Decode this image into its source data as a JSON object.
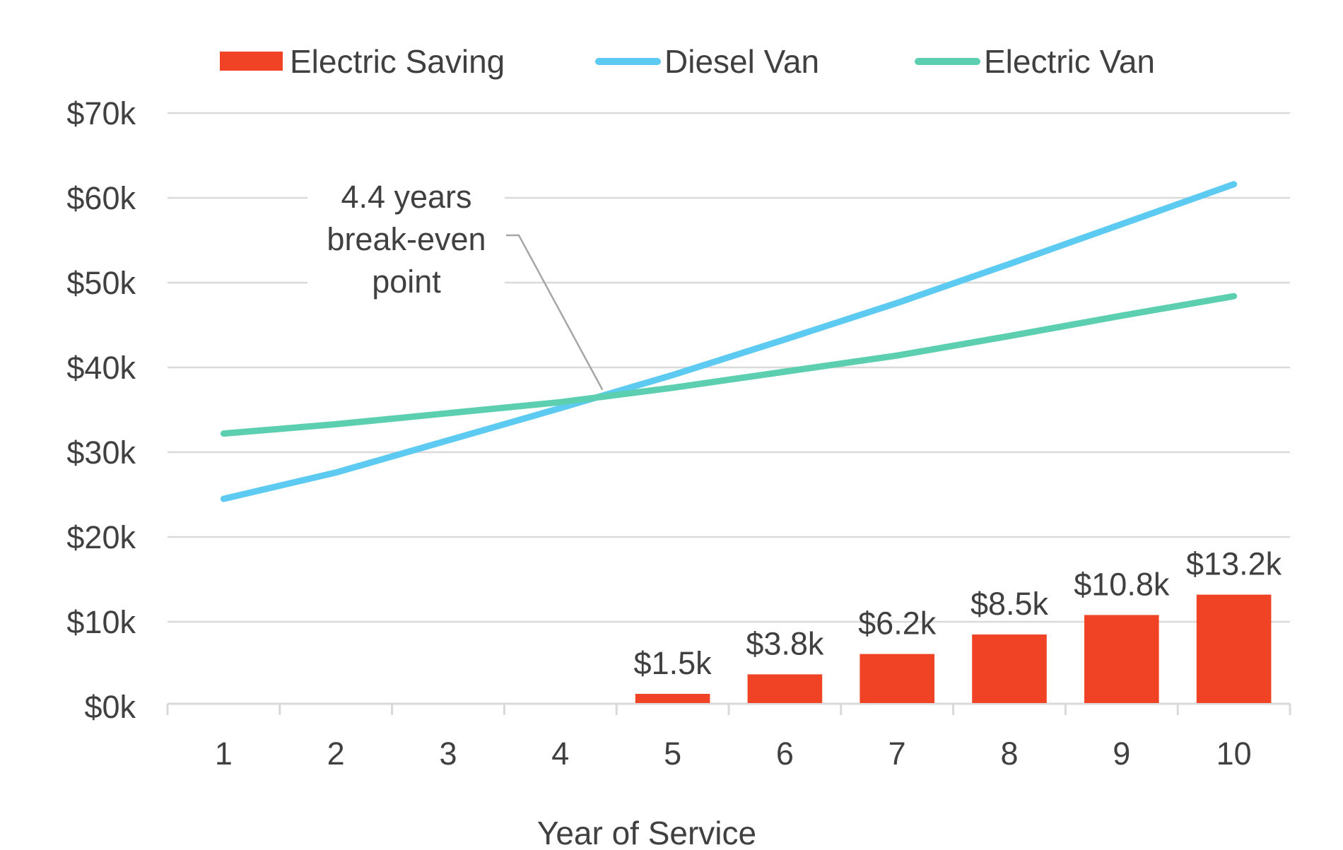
{
  "chart_data": {
    "type": "bar+line",
    "title": "",
    "xlabel": "Year of Service",
    "ylabel": "",
    "categories": [
      "1",
      "2",
      "3",
      "4",
      "5",
      "6",
      "7",
      "8",
      "9",
      "10"
    ],
    "ylim": [
      0,
      70
    ],
    "y_ticks": [
      0,
      10,
      20,
      30,
      40,
      50,
      60,
      70
    ],
    "y_tick_labels": [
      "$0k",
      "$10k",
      "$20k",
      "$30k",
      "$40k",
      "$50k",
      "$60k",
      "$70k"
    ],
    "y_unit": "thousand USD",
    "grid": true,
    "legend_position": "top",
    "series": [
      {
        "name": "Electric Saving",
        "type": "bar",
        "color": "#F04325",
        "values": [
          null,
          null,
          null,
          null,
          1.5,
          3.8,
          6.2,
          8.5,
          10.8,
          13.2
        ],
        "data_labels": [
          null,
          null,
          null,
          null,
          "$1.5k",
          "$3.8k",
          "$6.2k",
          "$8.5k",
          "$10.8k",
          "$13.2k"
        ]
      },
      {
        "name": "Diesel Van",
        "type": "line",
        "color": "#5DCAF2",
        "values": [
          24.5,
          27.6,
          31.4,
          35.2,
          39.1,
          43.3,
          47.6,
          52.2,
          56.9,
          61.6
        ]
      },
      {
        "name": "Electric Van",
        "type": "line",
        "color": "#5CCFB0",
        "values": [
          32.2,
          33.3,
          34.6,
          35.9,
          37.6,
          39.5,
          41.4,
          43.7,
          46.1,
          48.4
        ]
      }
    ],
    "annotations": [
      {
        "lines": [
          "4.4 years",
          "break-even",
          "point"
        ],
        "x_value": 4.4,
        "y_value": 36.7,
        "leader_color": "#A6A6A6"
      }
    ],
    "colors": {
      "text": "#404040",
      "gridline": "#D9D9D9",
      "axis": "#D9D9D9"
    }
  }
}
